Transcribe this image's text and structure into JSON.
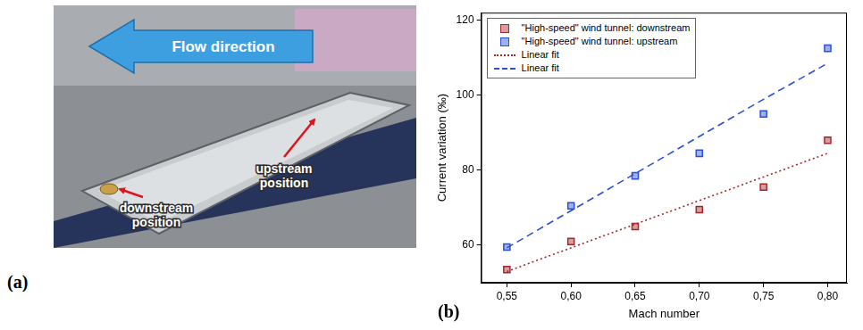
{
  "photo_panel": {
    "panel_label": "(a)",
    "flow_label": "Flow direction",
    "position_labels": [
      "downstream position",
      "upstream position"
    ]
  },
  "chart_panel_label": "(b)",
  "chart_data": {
    "type": "scatter",
    "x_label": "Mach number",
    "y_label": "Current variation (‰)",
    "x": [
      0.55,
      0.6,
      0.65,
      0.7,
      0.75,
      0.8
    ],
    "xlim": [
      0.53,
      0.815
    ],
    "xticks": [
      {
        "value": 0.55,
        "label": "0,55"
      },
      {
        "value": 0.6,
        "label": "0,60"
      },
      {
        "value": 0.65,
        "label": "0,65"
      },
      {
        "value": 0.7,
        "label": "0,70"
      },
      {
        "value": 0.75,
        "label": "0,75"
      },
      {
        "value": 0.8,
        "label": "0,80"
      }
    ],
    "ylim": [
      50,
      122
    ],
    "yticks": [
      60,
      80,
      100,
      120
    ],
    "grid": false,
    "legend": "upper left",
    "series": [
      {
        "name": "\"High-speed\" wind tunnel: downstream",
        "color": "#a3282c",
        "type": "scatter",
        "marker": "square",
        "values": [
          53.5,
          61,
          65,
          69.5,
          75.5,
          88
        ]
      },
      {
        "name": "\"High-speed\" wind tunnel: upstream",
        "color": "#2a4fd8",
        "type": "scatter",
        "marker": "square",
        "values": [
          59.5,
          70.5,
          78.5,
          84.5,
          95,
          112.5
        ]
      },
      {
        "name": "Linear fit",
        "color": "#a3282c",
        "type": "line",
        "line_style": "dotted",
        "values": [
          53,
          59.3,
          65.6,
          71.9,
          78.2,
          84.5
        ]
      },
      {
        "name": "Linear fit",
        "color": "#2a4fd8",
        "type": "line",
        "line_style": "dashed",
        "values": [
          59.3,
          69.2,
          79.1,
          89,
          98.9,
          108.5
        ]
      }
    ]
  }
}
